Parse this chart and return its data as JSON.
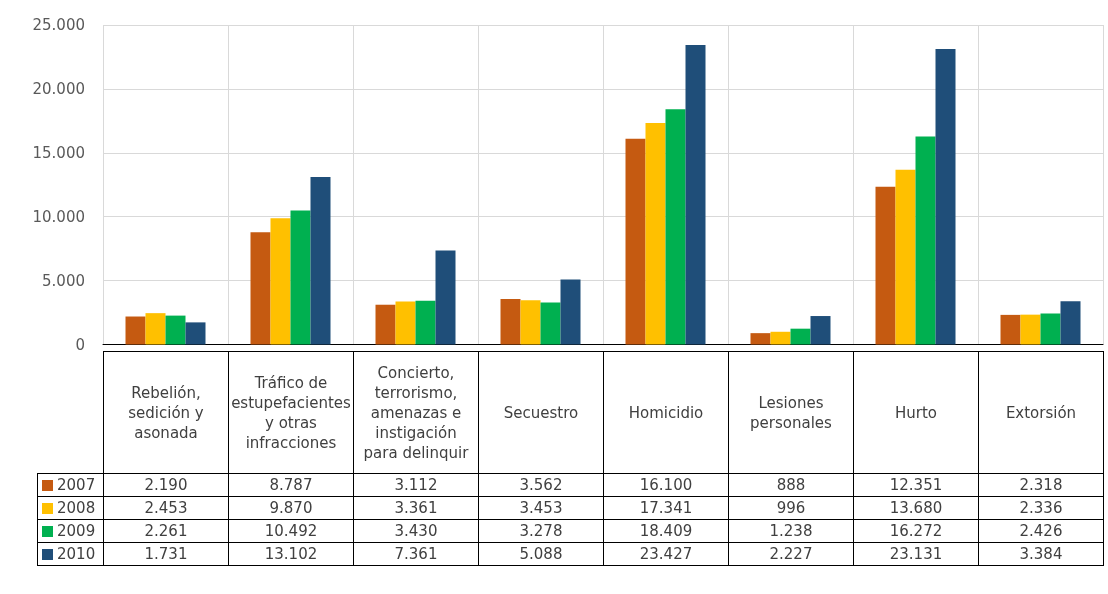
{
  "chart_data": {
    "type": "bar",
    "categories": [
      "Rebelión, sedición y asonada",
      "Tráfico de estupefacientes y otras infracciones",
      "Concierto, terrorismo, amenazas e instigación para delinquir",
      "Secuestro",
      "Homicidio",
      "Lesiones personales",
      "Hurto",
      "Extorsión"
    ],
    "series": [
      {
        "name": "2007",
        "color": "#c55a11",
        "values": [
          2190,
          8787,
          3112,
          3562,
          16100,
          888,
          12351,
          2318
        ],
        "value_labels": [
          "2.190",
          "8.787",
          "3.112",
          "3.562",
          "16.100",
          "888",
          "12.351",
          "2.318"
        ]
      },
      {
        "name": "2008",
        "color": "#ffc000",
        "values": [
          2453,
          9870,
          3361,
          3453,
          17341,
          996,
          13680,
          2336
        ],
        "value_labels": [
          "2.453",
          "9.870",
          "3.361",
          "3.453",
          "17.341",
          "996",
          "13.680",
          "2.336"
        ]
      },
      {
        "name": "2009",
        "color": "#00b050",
        "values": [
          2261,
          10492,
          3430,
          3278,
          18409,
          1238,
          16272,
          2426
        ],
        "value_labels": [
          "2.261",
          "10.492",
          "3.430",
          "3.278",
          "18.409",
          "1.238",
          "16.272",
          "2.426"
        ]
      },
      {
        "name": "2010",
        "color": "#1f4e79",
        "values": [
          1731,
          13102,
          7361,
          5088,
          23427,
          2227,
          23131,
          3384
        ],
        "value_labels": [
          "1.731",
          "13.102",
          "7.361",
          "5.088",
          "23.427",
          "2.227",
          "23.131",
          "3.384"
        ]
      }
    ],
    "ylim": [
      0,
      25000
    ],
    "yticks": [
      0,
      {
        "value": 5000,
        "label": "5.000"
      },
      {
        "value": 10000,
        "label": "10.000"
      },
      {
        "value": 15000,
        "label": "15.000"
      },
      {
        "value": 20000,
        "label": "20.000"
      },
      {
        "value": 25000,
        "label": "25.000"
      }
    ],
    "grid": true,
    "legend": "bottom left"
  }
}
